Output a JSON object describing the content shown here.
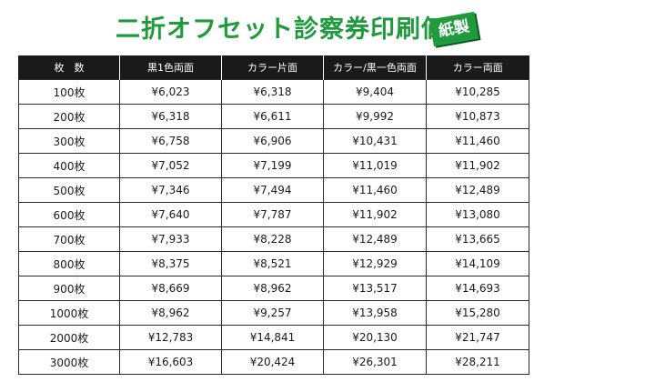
{
  "title": "二折オフセット診察券印刷価格",
  "badge": "紙製",
  "colors": {
    "title": "#1f9a3c",
    "badge_bg": "#1f9a3c",
    "header_bg": "#1a1a1a"
  },
  "table": {
    "headers": [
      "枚　数",
      "黒1色両面",
      "カラー片面",
      "カラー/黒一色両面",
      "カラー両面"
    ],
    "rows": [
      [
        "100枚",
        "¥6,023",
        "¥6,318",
        "¥9,404",
        "¥10,285"
      ],
      [
        "200枚",
        "¥6,318",
        "¥6,611",
        "¥9,992",
        "¥10,873"
      ],
      [
        "300枚",
        "¥6,758",
        "¥6,906",
        "¥10,431",
        "¥11,460"
      ],
      [
        "400枚",
        "¥7,052",
        "¥7,199",
        "¥11,019",
        "¥11,902"
      ],
      [
        "500枚",
        "¥7,346",
        "¥7,494",
        "¥11,460",
        "¥12,489"
      ],
      [
        "600枚",
        "¥7,640",
        "¥7,787",
        "¥11,902",
        "¥13,080"
      ],
      [
        "700枚",
        "¥7,933",
        "¥8,228",
        "¥12,489",
        "¥13,665"
      ],
      [
        "800枚",
        "¥8,375",
        "¥8,521",
        "¥12,929",
        "¥14,109"
      ],
      [
        "900枚",
        "¥8,669",
        "¥8,962",
        "¥13,517",
        "¥14,693"
      ],
      [
        "1000枚",
        "¥8,962",
        "¥9,257",
        "¥13,958",
        "¥15,280"
      ],
      [
        "2000枚",
        "¥12,783",
        "¥14,841",
        "¥20,130",
        "¥21,747"
      ],
      [
        "3000枚",
        "¥16,603",
        "¥20,424",
        "¥26,301",
        "¥28,211"
      ]
    ]
  }
}
